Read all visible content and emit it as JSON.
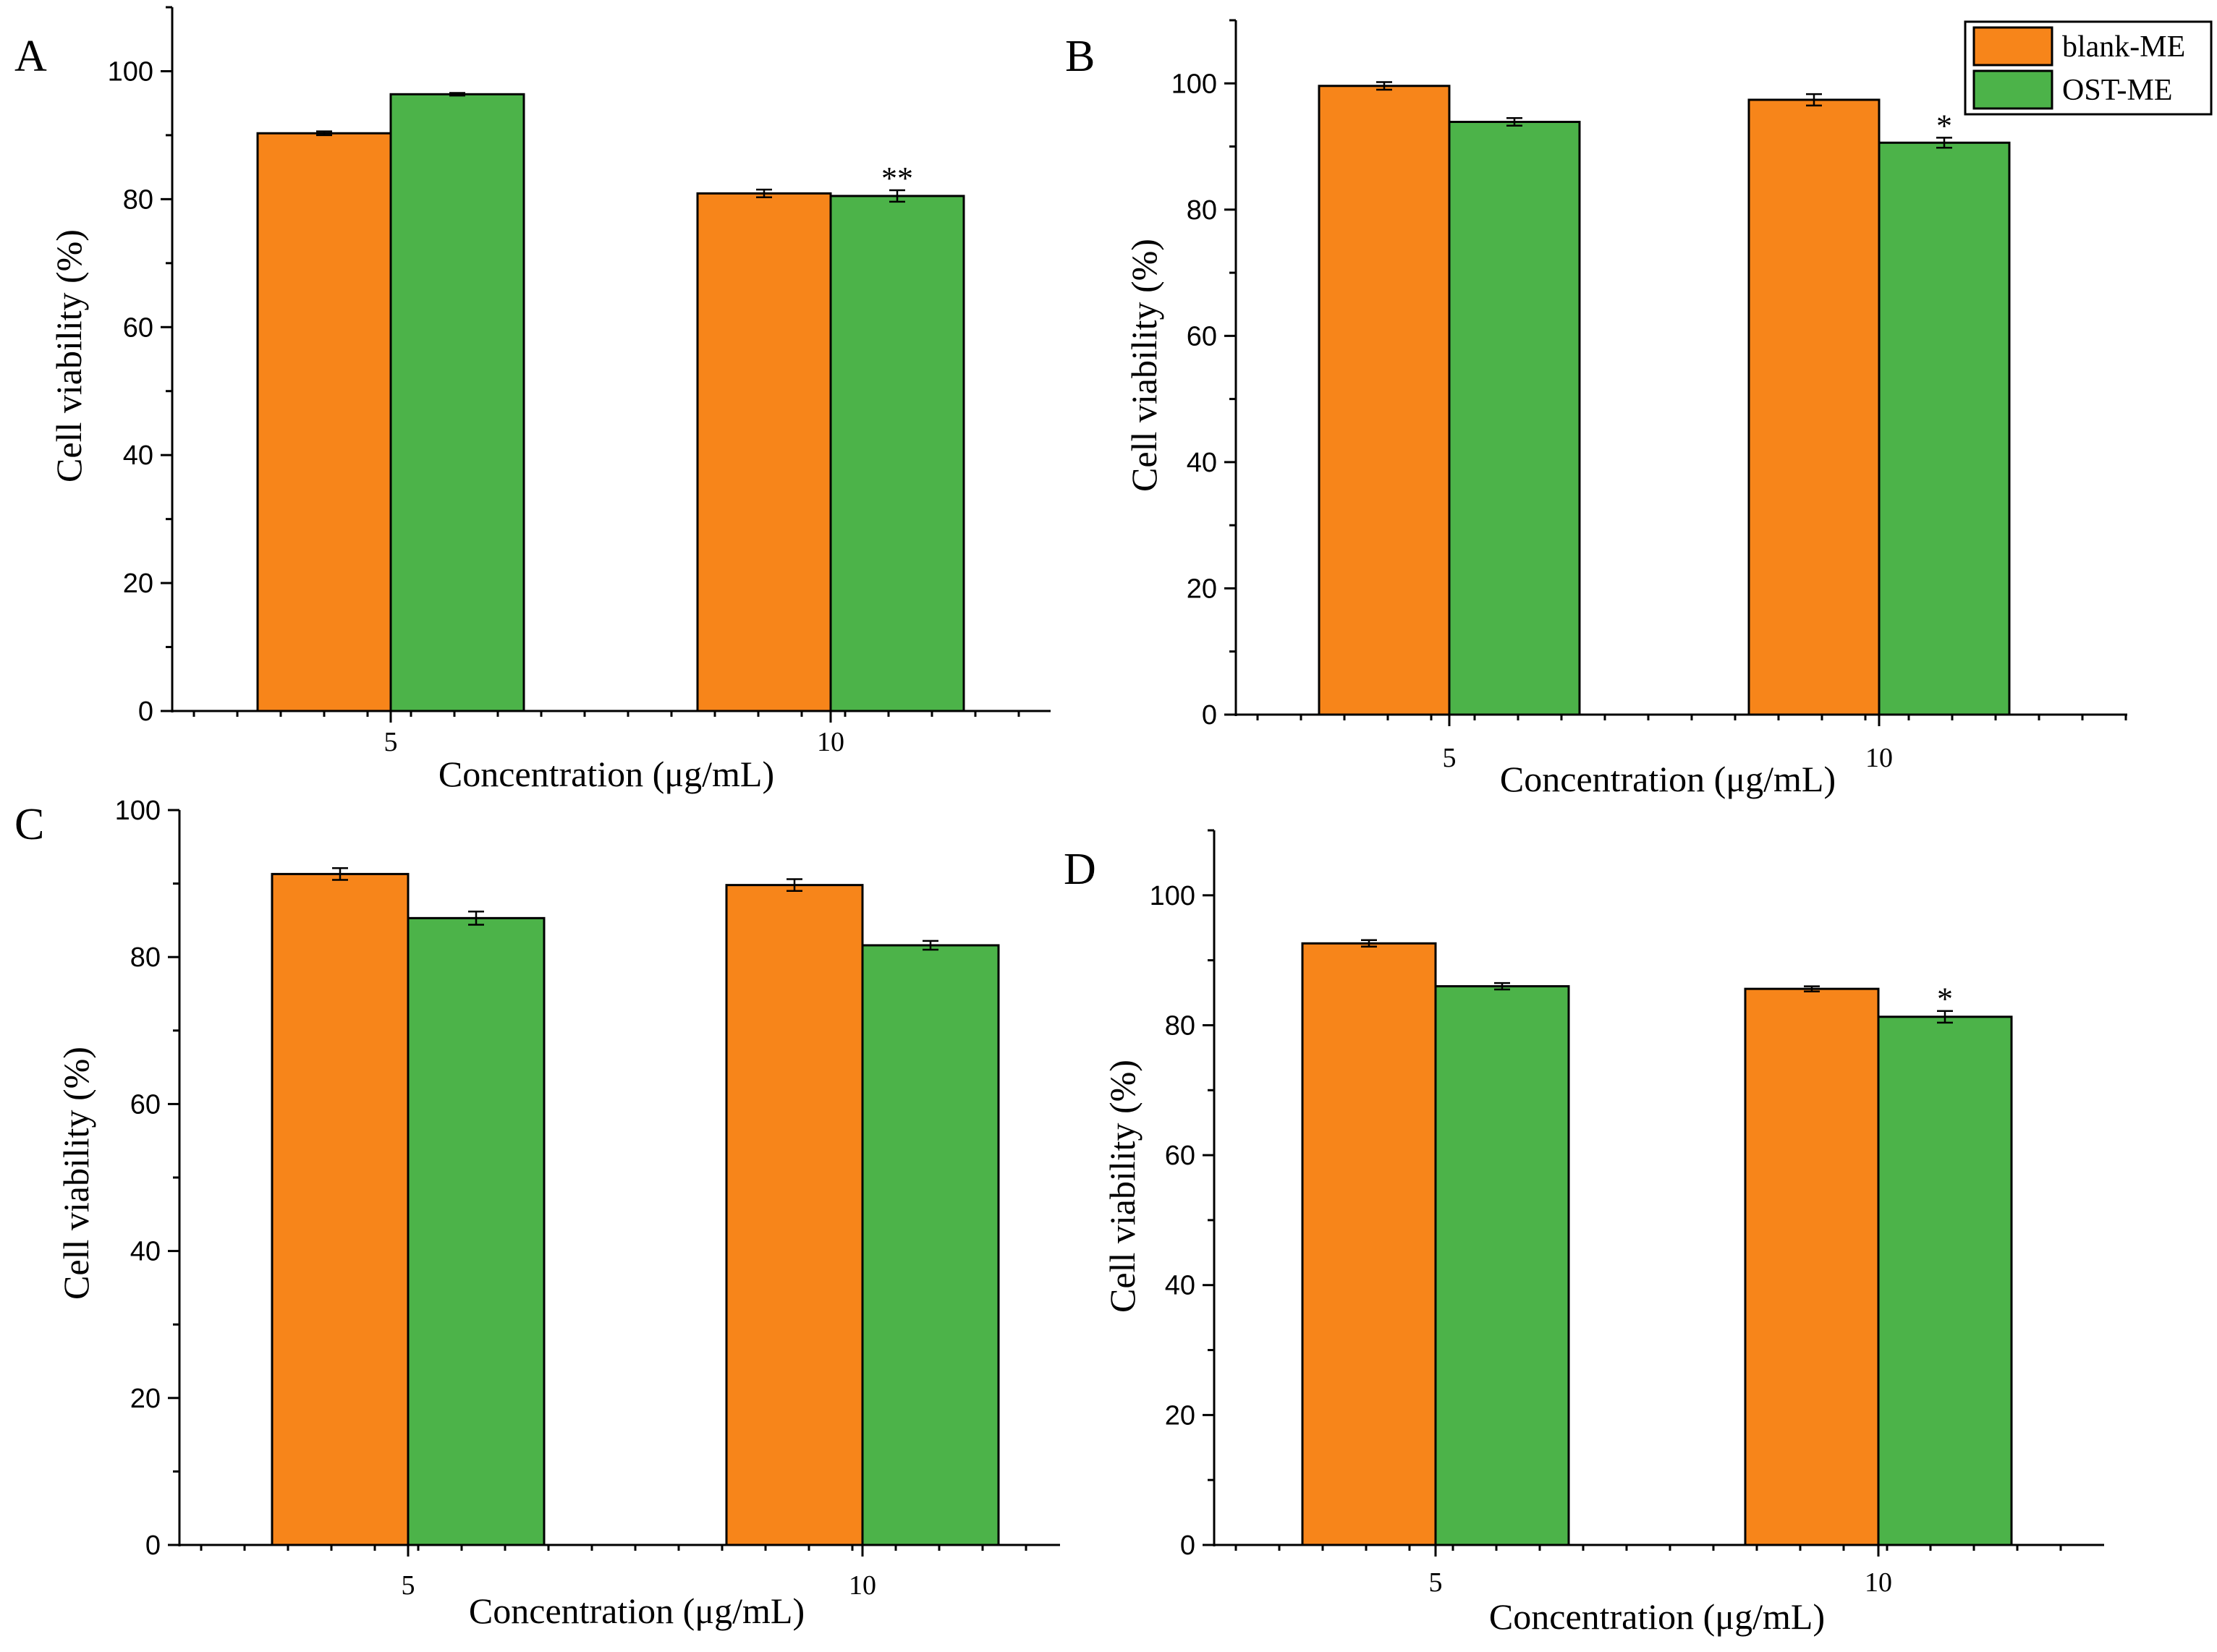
{
  "colors": {
    "blank": "#f7851a",
    "ost": "#4cb349",
    "axis": "#000000"
  },
  "legend": {
    "placement": "top-right",
    "entries": [
      "blank-ME",
      "OST-ME"
    ]
  },
  "chart_data": [
    {
      "type": "bar",
      "panel": "A",
      "categories": [
        "5",
        "10"
      ],
      "xlabel": "Concentration (μg/mL)",
      "ylabel": "Cell viability (%)",
      "ylim": [
        0,
        110
      ],
      "yticks": [
        "0",
        "20",
        "40",
        "60",
        "80",
        "100"
      ],
      "series": [
        {
          "name": "blank-ME",
          "values": [
            90.3,
            80.9
          ],
          "errors": [
            0.3,
            0.6
          ]
        },
        {
          "name": "OST-ME",
          "values": [
            96.4,
            80.5
          ],
          "errors": [
            0.2,
            0.9
          ]
        }
      ],
      "annotations": [
        {
          "category": 1,
          "series": 1,
          "text": "**"
        }
      ]
    },
    {
      "type": "bar",
      "panel": "B",
      "categories": [
        "5",
        "10"
      ],
      "xlabel": "Concentration (μg/mL)",
      "ylabel": "Cell viability (%)",
      "ylim": [
        0,
        110
      ],
      "yticks": [
        "0",
        "20",
        "40",
        "60",
        "80",
        "100"
      ],
      "series": [
        {
          "name": "blank-ME",
          "values": [
            99.6,
            97.4
          ],
          "errors": [
            0.6,
            0.9
          ]
        },
        {
          "name": "OST-ME",
          "values": [
            93.9,
            90.6
          ],
          "errors": [
            0.6,
            0.8
          ]
        }
      ],
      "annotations": [
        {
          "category": 1,
          "series": 1,
          "text": "*"
        }
      ]
    },
    {
      "type": "bar",
      "panel": "C",
      "categories": [
        "5",
        "10"
      ],
      "xlabel": "Concentration (μg/mL)",
      "ylabel": "Cell viability (%)",
      "ylim": [
        0,
        100
      ],
      "yticks": [
        "0",
        "20",
        "40",
        "60",
        "80",
        "100"
      ],
      "series": [
        {
          "name": "blank-ME",
          "values": [
            91.3,
            89.8
          ],
          "errors": [
            0.8,
            0.8
          ]
        },
        {
          "name": "OST-ME",
          "values": [
            85.3,
            81.6
          ],
          "errors": [
            0.9,
            0.6
          ]
        }
      ],
      "annotations": []
    },
    {
      "type": "bar",
      "panel": "D",
      "categories": [
        "5",
        "10"
      ],
      "xlabel": "Concentration (μg/mL)",
      "ylabel": "Cell viability (%)",
      "ylim": [
        0,
        110
      ],
      "yticks": [
        "0",
        "20",
        "40",
        "60",
        "80",
        "100"
      ],
      "series": [
        {
          "name": "blank-ME",
          "values": [
            92.6,
            85.6
          ],
          "errors": [
            0.5,
            0.4
          ]
        },
        {
          "name": "OST-ME",
          "values": [
            86.0,
            81.3
          ],
          "errors": [
            0.5,
            0.9
          ]
        }
      ],
      "annotations": [
        {
          "category": 1,
          "series": 1,
          "text": "*"
        }
      ]
    }
  ]
}
